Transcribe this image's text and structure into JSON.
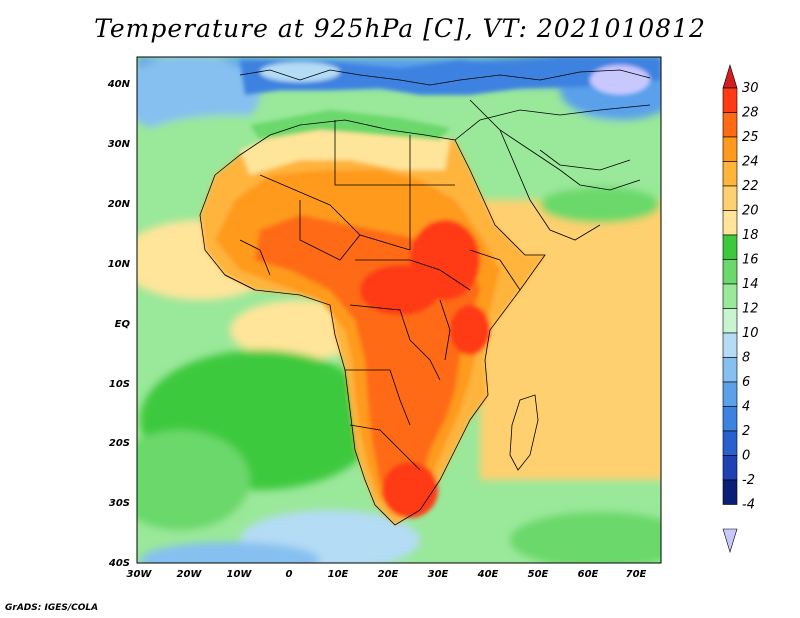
{
  "title": "Temperature at 925hPa [C], VT: 2021010812",
  "credit": "GrADS: IGES/COLA",
  "map": {
    "region": "Africa",
    "lon_range": [
      -30,
      75
    ],
    "lat_range": [
      -40,
      45
    ],
    "lon_ticks": [
      "30W",
      "20W",
      "10W",
      "0",
      "10E",
      "20E",
      "30E",
      "40E",
      "50E",
      "60E",
      "70E"
    ],
    "lat_ticks": [
      "40N",
      "30N",
      "20N",
      "10N",
      "EQ",
      "10S",
      "20S",
      "30S",
      "40S"
    ]
  },
  "colorbar": {
    "labels": [
      "30",
      "28",
      "25",
      "24",
      "22",
      "20",
      "18",
      "16",
      "14",
      "12",
      "10",
      "8",
      "6",
      "4",
      "2",
      "0",
      "-2",
      "-4"
    ],
    "colors": [
      "#ff3a14",
      "#ff6a14",
      "#ff9a1e",
      "#ffb43c",
      "#ffd070",
      "#ffe59a",
      "#3cc93c",
      "#6ad86a",
      "#9ae89a",
      "#c8f5d0",
      "#b4dcf5",
      "#86c0f0",
      "#5aa0ea",
      "#3c82e0",
      "#2860d0",
      "#1e42b4",
      "#0a1e78"
    ],
    "top_arrow_color": "#d21e1e",
    "bottom_arrow_color": "#c8c8ff"
  }
}
